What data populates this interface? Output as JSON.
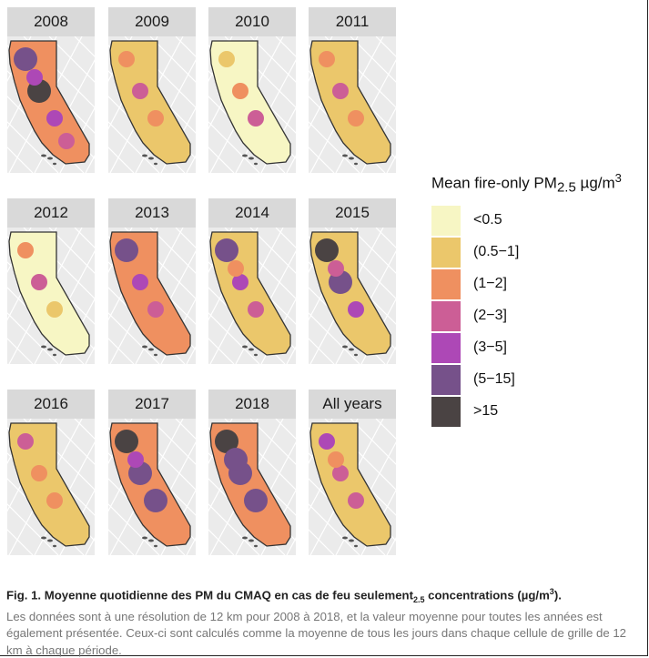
{
  "chart_data": {
    "type": "heatmap",
    "subtype": "small-multiple choropleth maps of California",
    "panels": [
      {
        "title": "2008",
        "base_class": 2,
        "hotspots": [
          5,
          6,
          4,
          4,
          3
        ]
      },
      {
        "title": "2009",
        "base_class": 1,
        "hotspots": [
          2,
          3,
          2
        ]
      },
      {
        "title": "2010",
        "base_class": 0,
        "hotspots": [
          1,
          2,
          3
        ]
      },
      {
        "title": "2011",
        "base_class": 1,
        "hotspots": [
          2,
          3,
          2
        ]
      },
      {
        "title": "2012",
        "base_class": 0,
        "hotspots": [
          2,
          3,
          1
        ]
      },
      {
        "title": "2013",
        "base_class": 2,
        "hotspots": [
          5,
          4,
          3
        ]
      },
      {
        "title": "2014",
        "base_class": 1,
        "hotspots": [
          5,
          4,
          3,
          2
        ]
      },
      {
        "title": "2015",
        "base_class": 1,
        "hotspots": [
          6,
          5,
          4,
          3
        ]
      },
      {
        "title": "2016",
        "base_class": 1,
        "hotspots": [
          3,
          2,
          2
        ]
      },
      {
        "title": "2017",
        "base_class": 2,
        "hotspots": [
          6,
          5,
          5,
          4
        ]
      },
      {
        "title": "2018",
        "base_class": 2,
        "hotspots": [
          6,
          5,
          5,
          5
        ]
      },
      {
        "title": "All years",
        "base_class": 1,
        "hotspots": [
          4,
          3,
          3,
          2
        ]
      }
    ],
    "legend": {
      "title_main": "Mean fire-only PM",
      "title_sub": "2.5",
      "title_unit": " µg/m",
      "title_sup": "3",
      "classes": [
        {
          "label": "<0.5",
          "color": "#f7f6c4"
        },
        {
          "label": "(0.5−1]",
          "color": "#ebc76b"
        },
        {
          "label": "(1−2]",
          "color": "#ef9060"
        },
        {
          "label": "(2−3]",
          "color": "#cc5e96"
        },
        {
          "label": "(3−5]",
          "color": "#ad48b6"
        },
        {
          "label": "(5−15]",
          "color": "#76518a"
        },
        {
          "label": ">15",
          "color": "#4a4343"
        }
      ]
    }
  },
  "caption": {
    "bold_a": "Fig. 1. Moyenne quotidienne des PM du CMAQ en cas de feu seulement",
    "bold_sub": "2.5",
    "bold_b": " concentrations (µg/m",
    "bold_sup": "3",
    "bold_c": ").",
    "body": "Les données sont à une résolution de 12 km pour 2008 à 2018, et la valeur moyenne pour toutes les années est également présentée. Ceux-ci sont calculés comme la moyenne de tous les jours dans chaque cellule de grille de 12 km à chaque période."
  }
}
